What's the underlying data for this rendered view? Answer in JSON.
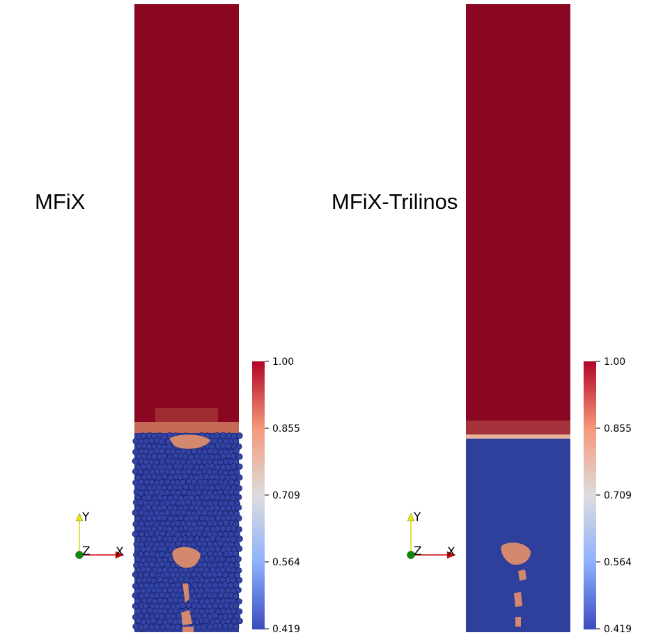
{
  "panels": [
    {
      "label": "MFiX"
    },
    {
      "label": "MFiX-Trilinos"
    }
  ],
  "colorbar": {
    "ticks": [
      "1.00",
      "0.855",
      "0.709",
      "0.564",
      "0.419"
    ],
    "colors": [
      "#b40426",
      "#f4987a",
      "#dddddd",
      "#8db0fe",
      "#3b4cc0"
    ]
  },
  "axes": {
    "y": "Y",
    "z": "Z",
    "x": "X"
  },
  "colors": {
    "gas": "#8b0621",
    "particles": "#2f3f9c",
    "particle_edge": "#16226a",
    "void": "#d4896e",
    "interface": "#e6b59c"
  }
}
